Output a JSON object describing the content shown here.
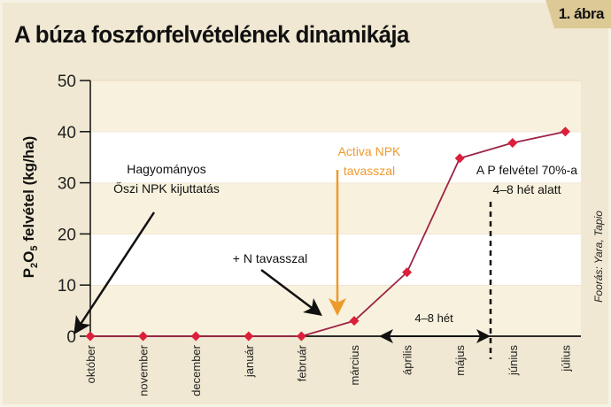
{
  "figure": {
    "badge": "1. ábra",
    "title": "A búza foszforfelvételének dinamikája",
    "source": "Foorás: Yara, Tapio"
  },
  "colors": {
    "background": "#f0e8d2",
    "band_cream": "#f8f1dd",
    "band_white": "#ffffff",
    "line": "#9c2446",
    "marker": "#dc1f3a",
    "orange_arrow": "#ee9a2b",
    "badge": "#dcc995"
  },
  "annotations": {
    "traditional_line1": "Hagyományos",
    "traditional_line2": "Őszi NPK kijuttatás",
    "n_spring": "+ N tavasszal",
    "activa_line1": "Activa NPK",
    "activa_line2": "tavasszal",
    "p70_line1": "A P felvétel 70%-a",
    "p70_line2": "4–8 hét alatt",
    "weeks": "4–8 hét"
  },
  "chart_data": {
    "type": "line",
    "title": "A búza foszforfelvételének dinamikája",
    "xlabel": "",
    "ylabel": "P2O5 felvétel (kg/ha)",
    "categories": [
      "október",
      "november",
      "december",
      "január",
      "február",
      "március",
      "április",
      "május",
      "június",
      "július"
    ],
    "values": [
      0,
      0,
      0,
      0,
      0,
      3,
      12.5,
      34.8,
      37.8,
      40
    ],
    "ylim": [
      0,
      50
    ],
    "yticks": [
      0,
      10,
      20,
      30,
      40,
      50
    ],
    "grid": "alternating horizontal bands",
    "legend": "none",
    "annotations": [
      {
        "text": "Hagyományos Őszi NPK kijuttatás",
        "points_to": "október"
      },
      {
        "text": "+ N tavasszal",
        "points_to": "február-március"
      },
      {
        "text": "Activa NPK tavasszal",
        "points_to": "március (orange arrow)"
      },
      {
        "text": "A P felvétel 70%-a 4–8 hét alatt",
        "position": "május-június"
      },
      {
        "text": "4–8 hét",
        "span": "február–június"
      }
    ]
  }
}
